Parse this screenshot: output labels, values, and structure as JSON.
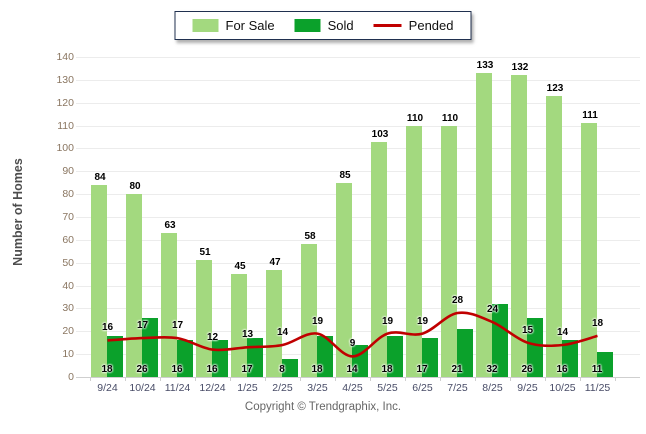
{
  "legend": {
    "position": "top-center"
  },
  "chart_data": {
    "type": "bar",
    "title": "",
    "xlabel": "",
    "ylabel": "Number of Homes",
    "ylim": [
      0,
      140
    ],
    "ytick_step": 10,
    "grid": true,
    "legend_position": "top-center",
    "categories": [
      "9/24",
      "10/24",
      "11/24",
      "12/24",
      "1/25",
      "2/25",
      "3/25",
      "4/25",
      "5/25",
      "6/25",
      "7/25",
      "8/25",
      "9/25",
      "10/25",
      "11/25"
    ],
    "series": [
      {
        "name": "For Sale",
        "type": "bar",
        "color": "#A3D97F",
        "values": [
          84,
          80,
          63,
          51,
          45,
          47,
          58,
          85,
          103,
          110,
          110,
          133,
          132,
          123,
          111
        ]
      },
      {
        "name": "Sold",
        "type": "bar",
        "color": "#0BA12B",
        "values": [
          18,
          26,
          16,
          16,
          17,
          8,
          18,
          14,
          18,
          17,
          21,
          32,
          26,
          16,
          11
        ]
      },
      {
        "name": "Pended",
        "type": "line",
        "color": "#C00000",
        "values": [
          16,
          17,
          17,
          12,
          13,
          14,
          19,
          9,
          19,
          19,
          28,
          24,
          15,
          14,
          18
        ]
      }
    ]
  },
  "footer": {
    "copyright": "Copyright © Trendgraphix, Inc."
  }
}
